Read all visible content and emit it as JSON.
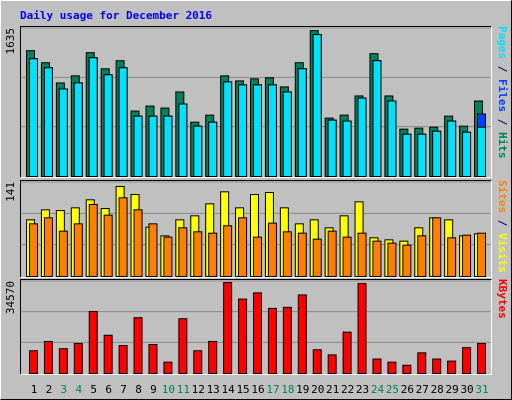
{
  "chart_data": [
    {
      "type": "bar",
      "title": "Daily usage for December 2016",
      "ylim": [
        0,
        1635
      ],
      "yticks": [
        1635
      ],
      "legend_separator": " / ",
      "series": [
        {
          "name": "Pages",
          "color": "#00e0ff",
          "values": [
            1301,
            1201,
            967,
            1034,
            1312,
            1123,
            1201,
            667,
            667,
            667,
            801,
            556,
            600,
            1045,
            1012,
            1012,
            1012,
            934,
            1190,
            1568,
            623,
            612,
            867,
            1279,
            834,
            467,
            467,
            500,
            612,
            489,
            545
          ]
        },
        {
          "name": "Files",
          "color": "#0040ff",
          "values": [
            1301,
            1201,
            967,
            1034,
            1312,
            1123,
            1201,
            667,
            667,
            667,
            801,
            556,
            600,
            1045,
            1012,
            1012,
            1012,
            934,
            1190,
            1568,
            623,
            612,
            867,
            1279,
            834,
            467,
            467,
            500,
            612,
            489,
            690
          ]
        },
        {
          "name": "Hits",
          "color": "#00805c",
          "values": [
            1390,
            1257,
            1034,
            1112,
            1368,
            1190,
            1279,
            723,
            778,
            756,
            934,
            600,
            678,
            1112,
            1056,
            1079,
            1090,
            990,
            1257,
            1612,
            645,
            678,
            890,
            1357,
            890,
            523,
            534,
            545,
            667,
            556,
            834
          ]
        }
      ]
    },
    {
      "type": "bar",
      "ylim": [
        0,
        141
      ],
      "yticks": [
        141
      ],
      "legend_separator": " / ",
      "series": [
        {
          "name": "Sites",
          "color": "#ff8000",
          "values": [
            79,
            88,
            68,
            79,
            108,
            92,
            118,
            100,
            79,
            59,
            73,
            67,
            65,
            76,
            88,
            59,
            80,
            67,
            65,
            56,
            68,
            59,
            65,
            53,
            50,
            47,
            61,
            88,
            58,
            62,
            65
          ]
        },
        {
          "name": "Visits",
          "color": "#ffff00",
          "values": [
            85,
            100,
            99,
            103,
            115,
            102,
            135,
            123,
            74,
            61,
            85,
            91,
            109,
            127,
            103,
            123,
            126,
            103,
            79,
            85,
            73,
            91,
            112,
            58,
            55,
            53,
            73,
            88,
            85,
            61,
            64
          ]
        }
      ]
    },
    {
      "type": "bar",
      "ylim": [
        0,
        34570
      ],
      "yticks": [
        34570
      ],
      "categories": [
        "1",
        "2",
        "3",
        "4",
        "5",
        "6",
        "7",
        "8",
        "9",
        "10",
        "11",
        "12",
        "13",
        "14",
        "15",
        "16",
        "17",
        "18",
        "19",
        "20",
        "21",
        "22",
        "23",
        "24",
        "25",
        "26",
        "27",
        "28",
        "29",
        "30",
        "31"
      ],
      "category_colors": [
        "#000000",
        "#000000",
        "#00805c",
        "#00805c",
        "#000000",
        "#000000",
        "#000000",
        "#000000",
        "#000000",
        "#00805c",
        "#00805c",
        "#000000",
        "#000000",
        "#000000",
        "#000000",
        "#000000",
        "#00805c",
        "#00805c",
        "#000000",
        "#000000",
        "#000000",
        "#000000",
        "#000000",
        "#00805c",
        "#00805c",
        "#000000",
        "#000000",
        "#000000",
        "#000000",
        "#000000",
        "#00805c"
      ],
      "series": [
        {
          "name": "KBytes",
          "color": "#ff0000",
          "values": [
            8545,
            12040,
            9322,
            11264,
            23304,
            14371,
            10487,
            20974,
            10875,
            4272,
            20585,
            8545,
            12040,
            34179,
            27965,
            30295,
            24469,
            24858,
            29518,
            8933,
            6991,
            15536,
            33791,
            5438,
            4272,
            3107,
            7768,
            5438,
            4661,
            9710,
            11264
          ]
        }
      ]
    }
  ]
}
